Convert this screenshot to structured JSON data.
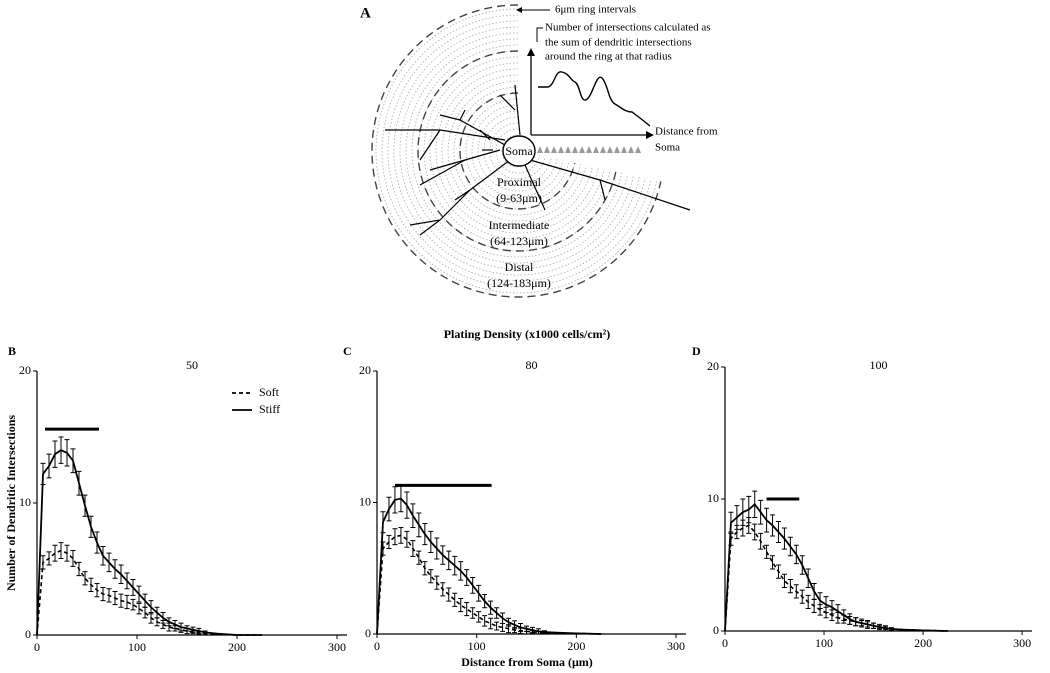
{
  "figure": {
    "title": "Plating Density (x1000 cells/cm²)"
  },
  "diagram": {
    "label": "A",
    "ring_note": "6μm ring intervals",
    "sum_note": [
      "Number of intersections calculated as",
      "the sum of dendritic intersections",
      "around the ring at that radius"
    ],
    "axis_label": [
      "Distance from",
      "Soma"
    ],
    "soma": "Soma",
    "regions": [
      {
        "name": "Proximal",
        "range": "(9-63μm)"
      },
      {
        "name": "Intermediate",
        "range": "(64-123μm)"
      },
      {
        "name": "Distal",
        "range": "(124-183μm)"
      }
    ]
  },
  "chart_data": [
    {
      "type": "line",
      "panel": "B",
      "title": "50",
      "ylabel": "Number of Dendritic Intersections",
      "xlim": [
        0,
        310
      ],
      "ylim": [
        0,
        20
      ],
      "xticks": [
        0,
        100,
        200,
        300
      ],
      "yticks": [
        0,
        10,
        20
      ],
      "legend": "upper right",
      "x": [
        0,
        6,
        12,
        18,
        24,
        30,
        36,
        42,
        48,
        54,
        60,
        66,
        72,
        78,
        84,
        90,
        96,
        102,
        108,
        114,
        120,
        126,
        132,
        138,
        144,
        150,
        156,
        162,
        168,
        180,
        200,
        225
      ],
      "series": [
        {
          "name": "Soft",
          "color": "#000000",
          "dash": true,
          "values": [
            0,
            5.5,
            5.8,
            6.2,
            6.4,
            6.2,
            5.8,
            5.0,
            4.3,
            3.8,
            3.4,
            3.1,
            3.0,
            2.8,
            2.6,
            2.5,
            2.3,
            2.0,
            1.7,
            1.3,
            1.0,
            0.8,
            0.6,
            0.5,
            0.4,
            0.3,
            0.2,
            0.15,
            0.1,
            0.05,
            0,
            0
          ],
          "errors": [
            0,
            0.5,
            0.5,
            0.6,
            0.6,
            0.6,
            0.6,
            0.5,
            0.5,
            0.5,
            0.5,
            0.5,
            0.5,
            0.5,
            0.5,
            0.5,
            0.4,
            0.4,
            0.4,
            0.4,
            0.3,
            0.3,
            0.3,
            0.2,
            0.2,
            0.2,
            0.1,
            0.1,
            0.1,
            0,
            0,
            0
          ]
        },
        {
          "name": "Stiff",
          "color": "#000000",
          "dash": false,
          "values": [
            0,
            12.2,
            12.8,
            13.7,
            14,
            13.8,
            13.2,
            11.5,
            9.8,
            8.2,
            7,
            6,
            5.5,
            5,
            4.6,
            4.1,
            3.6,
            3.1,
            2.6,
            2.1,
            1.7,
            1.3,
            1.0,
            0.8,
            0.6,
            0.5,
            0.4,
            0.3,
            0.2,
            0.1,
            0,
            0
          ],
          "errors": [
            0,
            0.8,
            0.9,
            1.0,
            1.0,
            1.0,
            0.9,
            0.9,
            0.8,
            0.8,
            0.8,
            0.7,
            0.7,
            0.7,
            0.7,
            0.6,
            0.6,
            0.6,
            0.5,
            0.5,
            0.4,
            0.4,
            0.3,
            0.3,
            0.3,
            0.2,
            0.2,
            0.2,
            0.1,
            0,
            0,
            0
          ]
        }
      ],
      "significance": {
        "xstart": 8,
        "xend": 62,
        "y": 15.6
      }
    },
    {
      "type": "line",
      "panel": "C",
      "title": "80",
      "xlabel": "Distance from Soma (μm)",
      "xlim": [
        0,
        310
      ],
      "ylim": [
        0,
        20
      ],
      "xticks": [
        0,
        100,
        200,
        300
      ],
      "yticks": [
        0,
        10,
        20
      ],
      "x": [
        0,
        6,
        12,
        18,
        24,
        30,
        36,
        42,
        48,
        54,
        60,
        66,
        72,
        78,
        84,
        90,
        96,
        102,
        108,
        114,
        120,
        126,
        132,
        138,
        144,
        150,
        156,
        162,
        168,
        180,
        200,
        225
      ],
      "series": [
        {
          "color": "#000000",
          "dash": true,
          "values": [
            0,
            6.5,
            7.0,
            7.4,
            7.5,
            7.2,
            6.5,
            5.8,
            5.0,
            4.4,
            3.9,
            3.4,
            3.0,
            2.6,
            2.2,
            1.9,
            1.6,
            1.3,
            1.0,
            0.8,
            0.6,
            0.5,
            0.4,
            0.3,
            0.25,
            0.2,
            0.15,
            0.1,
            0.1,
            0.05,
            0.05,
            0
          ],
          "errors": [
            0,
            0.5,
            0.5,
            0.6,
            0.6,
            0.6,
            0.6,
            0.5,
            0.5,
            0.5,
            0.5,
            0.5,
            0.5,
            0.5,
            0.5,
            0.5,
            0.4,
            0.4,
            0.4,
            0.4,
            0.3,
            0.3,
            0.3,
            0.2,
            0.2,
            0.2,
            0.1,
            0.1,
            0.1,
            0,
            0,
            0
          ]
        },
        {
          "color": "#000000",
          "dash": false,
          "values": [
            0,
            8.5,
            9.5,
            10.2,
            10.3,
            9.8,
            9.0,
            8.3,
            7.6,
            7.0,
            6.5,
            6.0,
            5.6,
            5.2,
            4.8,
            4.3,
            3.7,
            3.1,
            2.5,
            2.0,
            1.6,
            1.2,
            0.9,
            0.7,
            0.5,
            0.4,
            0.3,
            0.2,
            0.15,
            0.1,
            0.05,
            0
          ],
          "errors": [
            0,
            0.8,
            0.9,
            1.0,
            1.0,
            1.0,
            0.9,
            0.9,
            0.8,
            0.8,
            0.8,
            0.7,
            0.7,
            0.7,
            0.7,
            0.6,
            0.6,
            0.6,
            0.5,
            0.5,
            0.4,
            0.4,
            0.3,
            0.3,
            0.3,
            0.2,
            0.2,
            0.2,
            0.1,
            0,
            0,
            0
          ]
        }
      ],
      "significance": {
        "xstart": 18,
        "xend": 115,
        "y": 11.3
      }
    },
    {
      "type": "line",
      "panel": "D",
      "title": "100",
      "xlim": [
        0,
        310
      ],
      "ylim": [
        0,
        20
      ],
      "xticks": [
        0,
        100,
        200,
        300
      ],
      "yticks": [
        0,
        10,
        20
      ],
      "x": [
        0,
        6,
        12,
        18,
        24,
        30,
        36,
        42,
        48,
        54,
        60,
        66,
        72,
        78,
        84,
        90,
        96,
        102,
        108,
        114,
        120,
        126,
        132,
        138,
        144,
        150,
        156,
        162,
        168,
        180,
        200,
        225
      ],
      "series": [
        {
          "color": "#000000",
          "dash": true,
          "values": [
            0,
            7.0,
            7.5,
            7.8,
            8.0,
            7.5,
            6.8,
            6.0,
            5.2,
            4.5,
            3.8,
            3.4,
            3.0,
            2.6,
            2.2,
            1.9,
            1.6,
            1.4,
            1.2,
            1.0,
            0.9,
            0.8,
            0.7,
            0.6,
            0.5,
            0.4,
            0.3,
            0.2,
            0.15,
            0.1,
            0.05,
            0
          ],
          "errors": [
            0,
            0.5,
            0.5,
            0.6,
            0.6,
            0.6,
            0.6,
            0.5,
            0.5,
            0.5,
            0.5,
            0.5,
            0.5,
            0.5,
            0.5,
            0.5,
            0.4,
            0.4,
            0.4,
            0.4,
            0.3,
            0.3,
            0.3,
            0.2,
            0.2,
            0.2,
            0.1,
            0.1,
            0.1,
            0,
            0,
            0
          ]
        },
        {
          "color": "#000000",
          "dash": false,
          "values": [
            0,
            8.2,
            8.6,
            9.0,
            9.2,
            9.6,
            9.0,
            8.4,
            8.0,
            7.5,
            7.0,
            6.4,
            5.8,
            5.0,
            4.0,
            3.0,
            2.3,
            2.0,
            1.8,
            1.5,
            1.2,
            0.9,
            0.7,
            0.6,
            0.5,
            0.4,
            0.3,
            0.2,
            0.15,
            0.1,
            0.05,
            0
          ],
          "errors": [
            0,
            0.8,
            0.9,
            1.0,
            1.0,
            1.0,
            0.9,
            0.9,
            0.8,
            0.8,
            0.8,
            0.7,
            0.7,
            0.7,
            0.7,
            0.6,
            0.6,
            0.6,
            0.5,
            0.5,
            0.4,
            0.4,
            0.3,
            0.3,
            0.3,
            0.2,
            0.2,
            0.2,
            0.1,
            0,
            0,
            0
          ]
        }
      ],
      "significance": {
        "xstart": 42,
        "xend": 75,
        "y": 10
      }
    }
  ]
}
